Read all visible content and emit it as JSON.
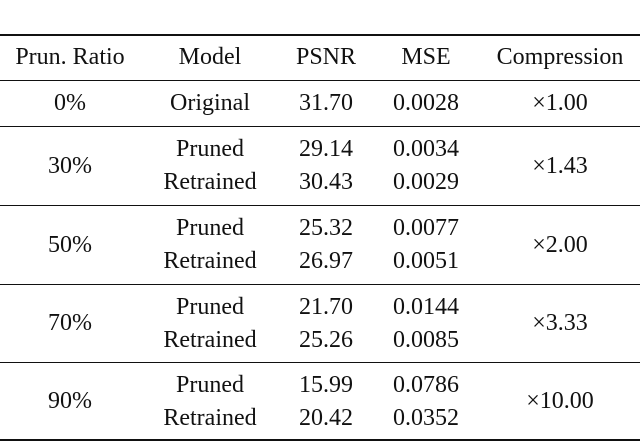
{
  "table": {
    "header": [
      "Prun. Ratio",
      "Model",
      "PSNR",
      "MSE",
      "Compression"
    ],
    "groups": [
      {
        "ratio": "0%",
        "rows": [
          [
            "Original",
            "31.70",
            "0.0028"
          ]
        ],
        "compression": "×1.00"
      },
      {
        "ratio": "30%",
        "rows": [
          [
            "Pruned",
            "29.14",
            "0.0034"
          ],
          [
            "Retrained",
            "30.43",
            "0.0029"
          ]
        ],
        "compression": "×1.43"
      },
      {
        "ratio": "50%",
        "rows": [
          [
            "Pruned",
            "25.32",
            "0.0077"
          ],
          [
            "Retrained",
            "26.97",
            "0.0051"
          ]
        ],
        "compression": "×2.00"
      },
      {
        "ratio": "70%",
        "rows": [
          [
            "Pruned",
            "21.70",
            "0.0144"
          ],
          [
            "Retrained",
            "25.26",
            "0.0085"
          ]
        ],
        "compression": "×3.33"
      },
      {
        "ratio": "90%",
        "rows": [
          [
            "Pruned",
            "15.99",
            "0.0786"
          ],
          [
            "Retrained",
            "20.42",
            "0.0352"
          ]
        ],
        "compression": "×10.00"
      }
    ]
  }
}
